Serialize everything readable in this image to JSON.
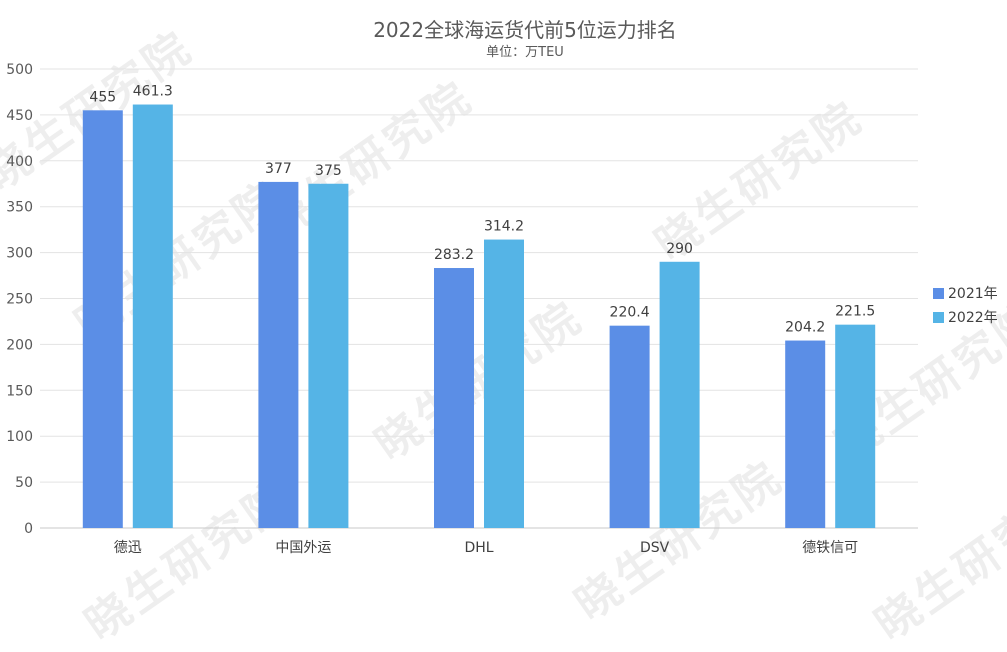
{
  "chart_data": {
    "type": "bar",
    "title": "2022全球海运货代前5位运力排名",
    "subtitle": "单位：万TEU",
    "categories": [
      "德迅",
      "中国外运",
      "DHL",
      "DSV",
      "德铁信可"
    ],
    "series": [
      {
        "name": "2021年",
        "values": [
          455,
          377,
          283.2,
          220.4,
          204.2
        ],
        "color": "#5b8ee6",
        "labels": [
          "455",
          "377",
          "283.2",
          "220.4",
          "204.2"
        ]
      },
      {
        "name": "2022年",
        "values": [
          461.3,
          375,
          314.2,
          290,
          221.5
        ],
        "color": "#55b4e6",
        "labels": [
          "461.3",
          "375",
          "314.2",
          "290",
          "221.5"
        ]
      }
    ],
    "ylim": [
      0,
      500
    ],
    "yticks": [
      0,
      50,
      100,
      150,
      200,
      250,
      300,
      350,
      400,
      450,
      500
    ],
    "grid": true,
    "legend_position": "right"
  },
  "watermark_text": "晓生研究院"
}
